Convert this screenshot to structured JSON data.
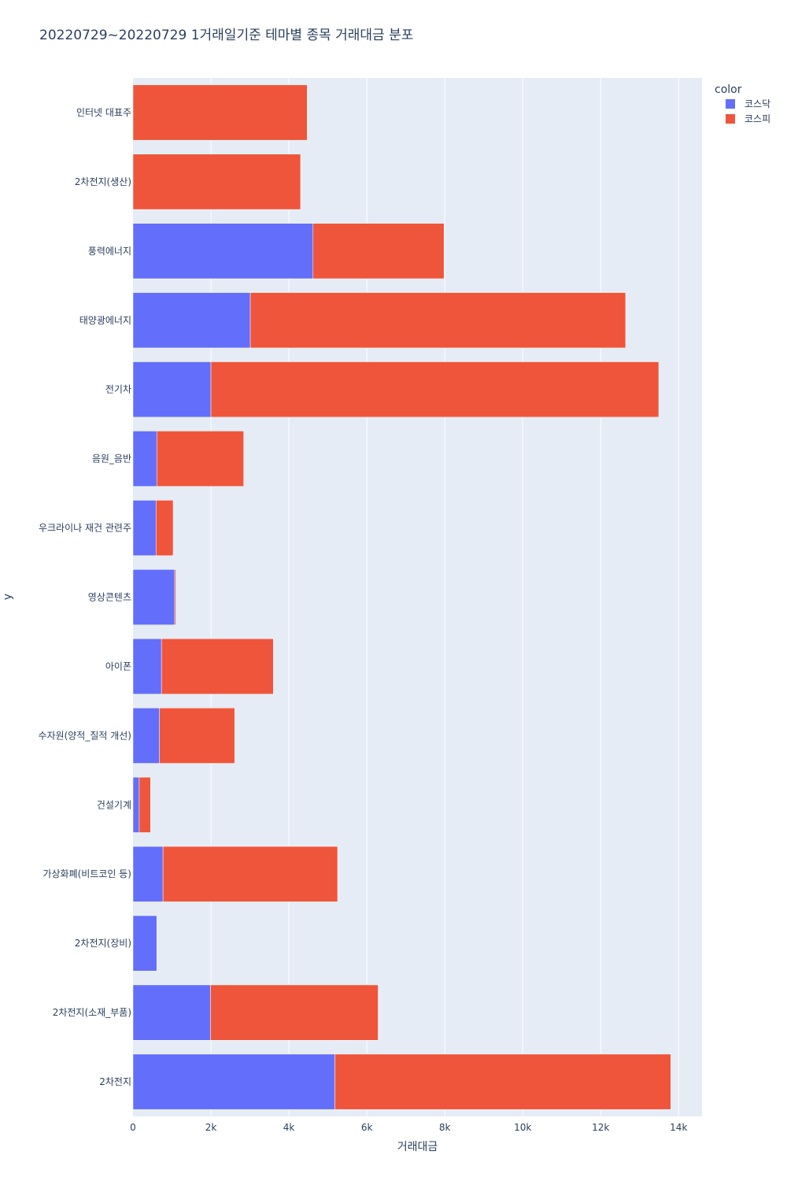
{
  "chart_data": {
    "type": "bar",
    "orientation": "horizontal",
    "barmode": "stack",
    "title": "20220729~20220729 1거래일기준 테마별 종목 거래대금 분포",
    "xlabel": "거래대금",
    "ylabel": "y",
    "xlim": [
      0,
      14600
    ],
    "xticks": [
      0,
      2000,
      4000,
      6000,
      8000,
      10000,
      12000,
      14000
    ],
    "xtick_labels": [
      "0",
      "2k",
      "4k",
      "6k",
      "8k",
      "10k",
      "12k",
      "14k"
    ],
    "categories": [
      "인터넷 대표주",
      "2차전지(생산)",
      "풍력에너지",
      "태양광에너지",
      "전기차",
      "음원_음반",
      "우크라이나 재건 관련주",
      "영상콘텐츠",
      "아이폰",
      "수자원(양적_질적 개선)",
      "건설기계",
      "가상화폐(비트코인 등)",
      "2차전지(장비)",
      "2차전지(소재_부품)",
      "2차전지"
    ],
    "legend_title": "color",
    "series": [
      {
        "name": "코스닥",
        "color": "#636efa",
        "values": [
          0,
          0,
          4620,
          3010,
          2000,
          610,
          590,
          1070,
          730,
          680,
          160,
          770,
          610,
          1990,
          5180
        ]
      },
      {
        "name": "코스피",
        "color": "#ef553b",
        "values": [
          4470,
          4300,
          3360,
          9630,
          11490,
          2230,
          440,
          30,
          2870,
          1930,
          290,
          4480,
          0,
          4300,
          8620
        ]
      }
    ]
  }
}
